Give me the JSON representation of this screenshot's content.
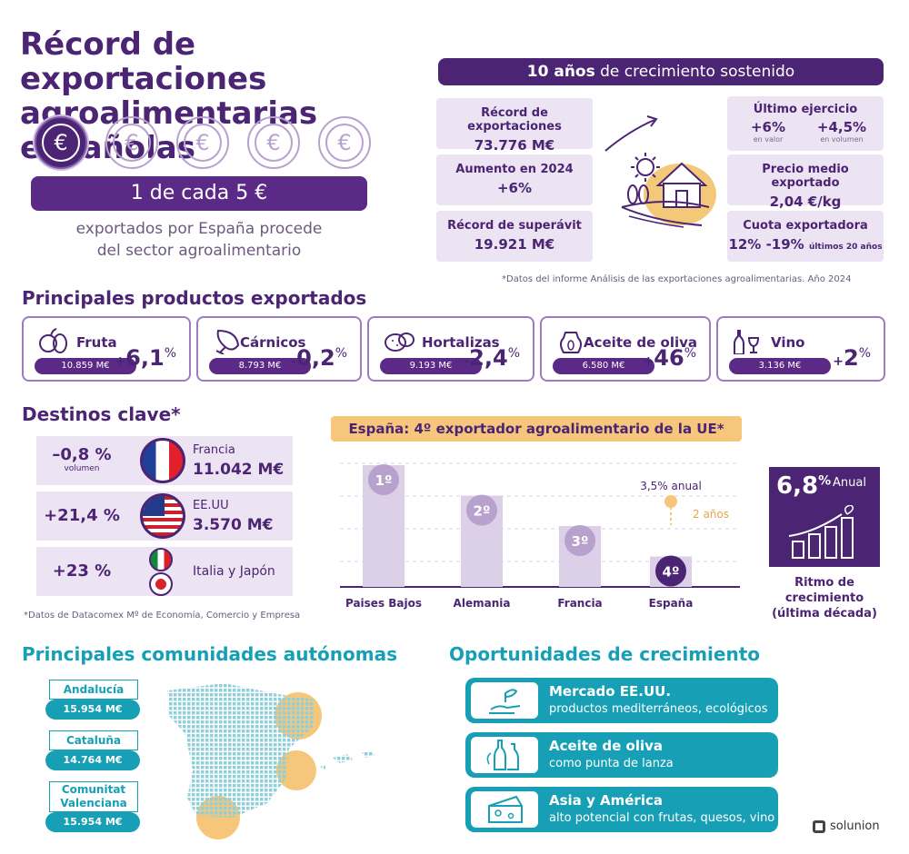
{
  "header": {
    "title_line1": "Récord de exportaciones",
    "title_line2": "agroalimentarias españolas",
    "coin_symbol": "€",
    "one_in_five": "1 de cada 5 €",
    "sub_line1": "exportados por España procede",
    "sub_line2": "del sector agroalimentario"
  },
  "growth": {
    "bold": "10 años",
    "rest": " de crecimiento sostenido",
    "left_stats": [
      {
        "label": "Récord de exportaciones",
        "value": "73.776 M€"
      },
      {
        "label": "Aumento en 2024",
        "value": "+6%"
      },
      {
        "label": "Récord de superávit",
        "value": "19.921 M€"
      }
    ],
    "last_year": {
      "label": "Último ejercicio",
      "v1": "+6%",
      "v1_sub": "en valor",
      "v2": "+4,5%",
      "v2_sub": "en volumen"
    },
    "avg_price": {
      "label": "Precio medio exportado",
      "value": "2,04 €/kg"
    },
    "quota": {
      "label": "Cuota exportadora",
      "value": "12% -19%",
      "sub": "últimos 20 años"
    },
    "footnote": "*Datos del informe Análisis de las exportaciones agroalimentarias. Año 2024"
  },
  "products": {
    "title": "Principales productos exportados",
    "items": [
      {
        "name": "Fruta",
        "value": "10.859 M€",
        "sign": "+",
        "pct": "6,1",
        "unit": "%",
        "icon": "fruit-icon"
      },
      {
        "name": "Cárnicos",
        "value": "8.793 M€",
        "sign": "-",
        "pct": "0,2",
        "unit": "%",
        "icon": "ham-icon"
      },
      {
        "name": "Hortalizas",
        "value": "9.193 M€",
        "sign": "-",
        "pct": "2,4",
        "unit": "%",
        "icon": "potato-icon"
      },
      {
        "name": "Aceite de oliva",
        "value": "6.580 M€",
        "sign": "+",
        "pct": "46",
        "unit": "%",
        "icon": "oil-jar-icon"
      },
      {
        "name": "Vino",
        "value": "3.136 M€",
        "sign": "+",
        "pct": "2",
        "unit": "%",
        "icon": "wine-icon"
      }
    ]
  },
  "destinations": {
    "title": "Destinos clave*",
    "items": [
      {
        "pct": "–0,8 %",
        "sub": "volumen",
        "country": "Francia",
        "amount": "11.042 M€"
      },
      {
        "pct": "+21,4 %",
        "sub": "",
        "country": "EE.UU",
        "amount": "3.570 M€"
      },
      {
        "pct": "+23 %",
        "sub": "",
        "country": "Italia y Japón",
        "amount": ""
      }
    ],
    "footnote": "*Datos de Datacomex Mº de Economía, Comercio y Empresa"
  },
  "chart_data": {
    "type": "bar",
    "title": "España: 4º exportador agroalimentario de la UE*",
    "categories": [
      "Paises Bajos",
      "Alemania",
      "Francia",
      "España"
    ],
    "ranks": [
      "1º",
      "2º",
      "3º",
      "4º"
    ],
    "values": [
      4,
      3,
      2,
      1
    ],
    "projection_label": "3,5% anual",
    "projection_years": "2 años"
  },
  "rate": {
    "value": "6,8",
    "unit": "%",
    "label": "Anual",
    "caption1": "Ritmo de crecimiento",
    "caption2": "(última década)"
  },
  "regions": {
    "title": "Principales comunidades autónomas",
    "items": [
      {
        "name": "Andalucía",
        "value": "15.954 M€"
      },
      {
        "name": "Cataluña",
        "value": "14.764 M€"
      },
      {
        "name1": "Comunitat",
        "name2": "Valenciana",
        "value": "15.954 M€"
      }
    ]
  },
  "opportunities": {
    "title": "Oportunidades de crecimiento",
    "items": [
      {
        "title": "Mercado EE.UU.",
        "sub": "productos mediterráneos, ecológicos",
        "icon": "hand-plant-icon"
      },
      {
        "title": "Aceite de oliva",
        "sub": "como punta de lanza",
        "icon": "bottles-icon"
      },
      {
        "title": "Asia y América",
        "sub": "alto potencial con frutas, quesos, vino",
        "icon": "cheese-icon"
      }
    ]
  },
  "brand": {
    "name": "solunion"
  },
  "colors": {
    "purple": "#4b2474",
    "lavender": "#ece4f3",
    "teal": "#17a0b5",
    "orange": "#f6c77a"
  }
}
